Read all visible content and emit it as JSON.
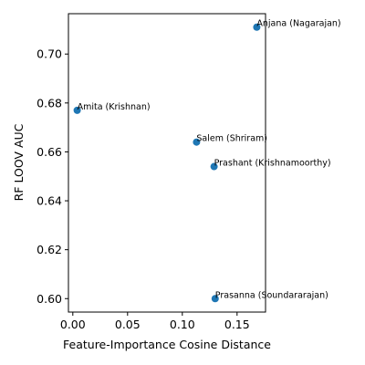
{
  "chart_data": {
    "type": "scatter",
    "title": "",
    "xlabel": "Feature-Importance Cosine Distance",
    "ylabel": "RF LOOV AUC",
    "xlim": [
      -0.004,
      0.176
    ],
    "ylim": [
      0.5945,
      0.7165
    ],
    "xticks": [
      {
        "value": 0.0,
        "label": "0.00"
      },
      {
        "value": 0.05,
        "label": "0.05"
      },
      {
        "value": 0.1,
        "label": "0.10"
      },
      {
        "value": 0.15,
        "label": "0.15"
      }
    ],
    "yticks": [
      {
        "value": 0.6,
        "label": "0.60"
      },
      {
        "value": 0.62,
        "label": "0.62"
      },
      {
        "value": 0.64,
        "label": "0.64"
      },
      {
        "value": 0.66,
        "label": "0.66"
      },
      {
        "value": 0.68,
        "label": "0.68"
      },
      {
        "value": 0.7,
        "label": "0.70"
      }
    ],
    "grid": false,
    "point_color": "#1f77b4",
    "points": [
      {
        "label": "Anjana (Nagarajan)",
        "x": 0.168,
        "y": 0.711
      },
      {
        "label": "Amita (Krishnan)",
        "x": 0.004,
        "y": 0.677
      },
      {
        "label": "Salem (Shriram)",
        "x": 0.113,
        "y": 0.664
      },
      {
        "label": "Prashant (Krishnamoorthy)",
        "x": 0.129,
        "y": 0.654
      },
      {
        "label": "Prasanna (Soundararajan)",
        "x": 0.13,
        "y": 0.6
      }
    ]
  }
}
